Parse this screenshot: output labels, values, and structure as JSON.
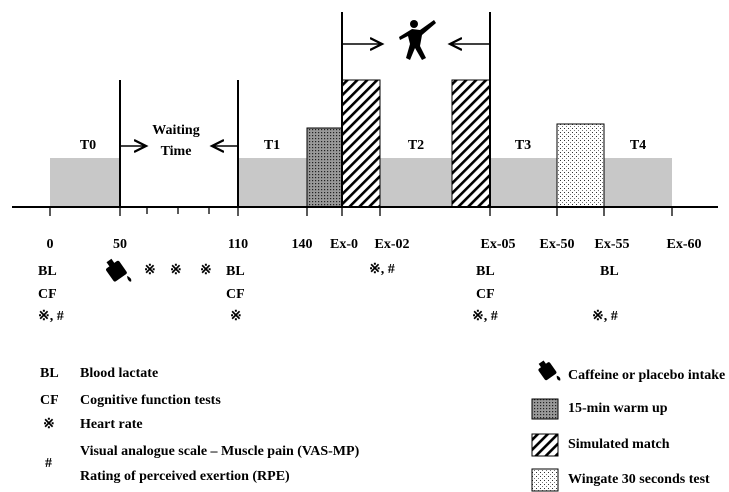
{
  "timeline": {
    "ticks": [
      "0",
      "50",
      "110",
      "140",
      "Ex-0",
      "Ex-02",
      "Ex-05",
      "Ex-50",
      "Ex-55",
      "Ex-60"
    ],
    "phases": [
      "T0",
      "T1",
      "T2",
      "T3",
      "T4"
    ],
    "waiting": [
      "Waiting",
      "Time"
    ]
  },
  "notes": [
    [
      "BL",
      "CF",
      "※, #"
    ],
    [
      "※",
      "※",
      "※"
    ],
    [
      "BL",
      "CF",
      "※"
    ],
    [
      "※, #"
    ],
    [
      "BL",
      "CF",
      "※, #"
    ],
    [
      "BL",
      "※, #"
    ]
  ],
  "legend_left": [
    {
      "symbol": "BL",
      "text": "Blood lactate"
    },
    {
      "symbol": "CF",
      "text": "Cognitive function tests"
    },
    {
      "symbol": "※",
      "text": "Heart rate"
    },
    {
      "symbol": "#",
      "text": [
        "Visual analogue scale – Muscle pain (VAS-MP)",
        "Rating of perceived exertion (RPE)"
      ]
    }
  ],
  "legend_right": [
    "Caffeine or placebo intake",
    "15-min warm up",
    "Simulated match",
    "Wingate 30 seconds test"
  ]
}
